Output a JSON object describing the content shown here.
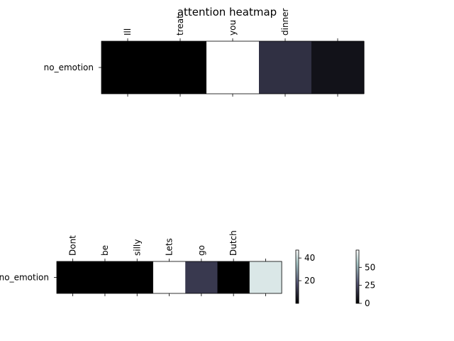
{
  "title": "attention heatmap",
  "chart_data": [
    {
      "type": "heatmap",
      "rows": [
        "no_emotion"
      ],
      "columns": [
        "Ill",
        "treat",
        "you",
        "dinner",
        ""
      ],
      "values": [
        [
          0.0,
          0.0,
          74.0,
          16.0,
          6.0
        ]
      ],
      "colormap": "bone",
      "vmin": 0,
      "vmax": 74
    },
    {
      "type": "heatmap",
      "rows": [
        "no_emotion"
      ],
      "columns": [
        "Dont",
        "be",
        "silly",
        "Lets",
        "go",
        "Dutch",
        ""
      ],
      "values": [
        [
          0.0,
          0.0,
          0.0,
          47.0,
          12.0,
          0.0,
          42.0
        ]
      ],
      "colormap": "bone",
      "vmin": 0,
      "vmax": 47
    }
  ],
  "colorbars": [
    {
      "ticks": [
        "20",
        "40"
      ],
      "tick_values": [
        20,
        40
      ],
      "vmin": 0,
      "vmax": 47
    },
    {
      "ticks": [
        "0",
        "25",
        "50"
      ],
      "tick_values": [
        0,
        25,
        50
      ],
      "vmin": 0,
      "vmax": 74
    }
  ]
}
